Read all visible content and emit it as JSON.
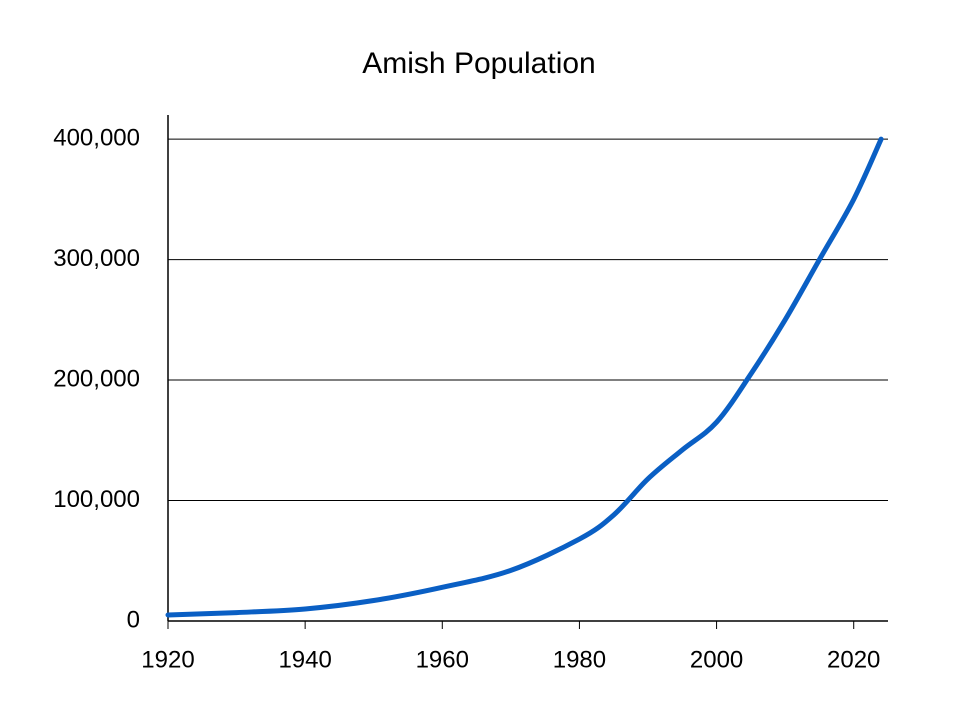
{
  "chart_data": {
    "type": "line",
    "title": "Amish Population",
    "x": [
      1920,
      1930,
      1940,
      1950,
      1960,
      1970,
      1980,
      1985,
      1990,
      1995,
      2000,
      2005,
      2010,
      2015,
      2020,
      2024
    ],
    "series": [
      {
        "name": "Amish Population",
        "color": "#0a5fc4",
        "values": [
          5000,
          7000,
          10000,
          17000,
          28000,
          42000,
          68000,
          88000,
          118000,
          142000,
          165000,
          205000,
          250000,
          300000,
          350000,
          400000
        ]
      }
    ],
    "xlim": [
      1920,
      2025
    ],
    "xticks": [
      1920,
      1940,
      1960,
      1980,
      2000,
      2020
    ],
    "ylim": [
      0,
      420000
    ],
    "yticks": [
      0,
      {
        "value": 100000,
        "label": "100,000"
      },
      {
        "value": 200000,
        "label": "200,000"
      },
      {
        "value": 300000,
        "label": "300,000"
      },
      {
        "value": 400000,
        "label": "400,000"
      }
    ],
    "grid": true
  }
}
